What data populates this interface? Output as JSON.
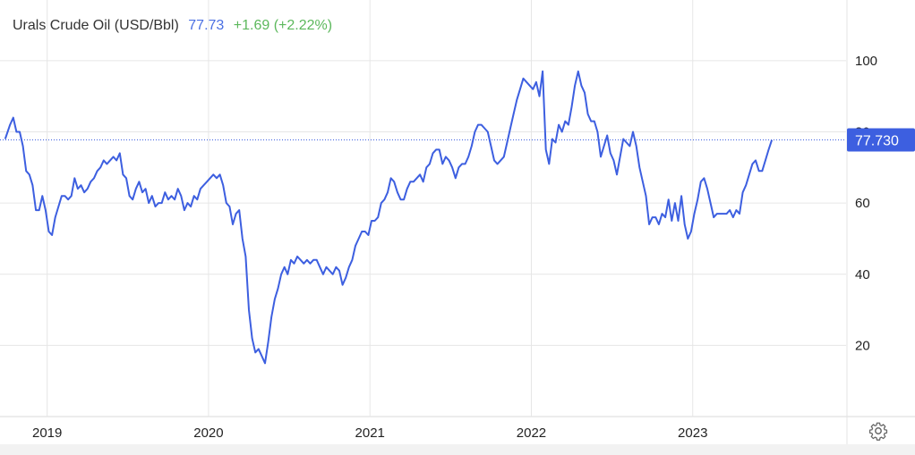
{
  "header": {
    "title": "Urals Crude Oil (USD/Bbl)",
    "price": "77.73",
    "change": "+1.69 (+2.22%)"
  },
  "colors": {
    "line": "#3d5fe0",
    "price_text": "#4a6fe3",
    "change_text": "#5cb85c",
    "grid": "#e6e6e6",
    "label_bg": "#3d5fe0"
  },
  "icons": {
    "settings": "gear-icon"
  },
  "chart_data": {
    "type": "line",
    "title": "Urals Crude Oil (USD/Bbl)",
    "xlabel": "",
    "ylabel": "",
    "ylim": [
      0,
      105
    ],
    "xlim": [
      2018.73,
      2023.95
    ],
    "x_ticks": [
      "2019",
      "2020",
      "2021",
      "2022",
      "2023"
    ],
    "y_ticks": [
      "100",
      "80",
      "60",
      "40",
      "20"
    ],
    "grid": true,
    "last_value_label": "77.730",
    "series": [
      {
        "name": "",
        "points": [
          [
            2018.74,
            78
          ],
          [
            2018.77,
            82
          ],
          [
            2018.79,
            84
          ],
          [
            2018.81,
            80
          ],
          [
            2018.83,
            80
          ],
          [
            2018.85,
            76
          ],
          [
            2018.87,
            69
          ],
          [
            2018.89,
            68
          ],
          [
            2018.91,
            65
          ],
          [
            2018.93,
            58
          ],
          [
            2018.95,
            58
          ],
          [
            2018.97,
            62
          ],
          [
            2018.99,
            58
          ],
          [
            2019.01,
            52
          ],
          [
            2019.03,
            51
          ],
          [
            2019.05,
            56
          ],
          [
            2019.07,
            59
          ],
          [
            2019.09,
            62
          ],
          [
            2019.11,
            62
          ],
          [
            2019.13,
            61
          ],
          [
            2019.15,
            62
          ],
          [
            2019.17,
            67
          ],
          [
            2019.19,
            64
          ],
          [
            2019.21,
            65
          ],
          [
            2019.23,
            63
          ],
          [
            2019.25,
            64
          ],
          [
            2019.27,
            66
          ],
          [
            2019.29,
            67
          ],
          [
            2019.31,
            69
          ],
          [
            2019.33,
            70
          ],
          [
            2019.35,
            72
          ],
          [
            2019.37,
            71
          ],
          [
            2019.39,
            72
          ],
          [
            2019.41,
            73
          ],
          [
            2019.43,
            72
          ],
          [
            2019.45,
            74
          ],
          [
            2019.47,
            68
          ],
          [
            2019.49,
            67
          ],
          [
            2019.51,
            62
          ],
          [
            2019.53,
            61
          ],
          [
            2019.55,
            64
          ],
          [
            2019.57,
            66
          ],
          [
            2019.59,
            63
          ],
          [
            2019.61,
            64
          ],
          [
            2019.63,
            60
          ],
          [
            2019.65,
            62
          ],
          [
            2019.67,
            59
          ],
          [
            2019.69,
            60
          ],
          [
            2019.71,
            60
          ],
          [
            2019.73,
            63
          ],
          [
            2019.75,
            61
          ],
          [
            2019.77,
            62
          ],
          [
            2019.79,
            61
          ],
          [
            2019.81,
            64
          ],
          [
            2019.83,
            62
          ],
          [
            2019.85,
            58
          ],
          [
            2019.87,
            60
          ],
          [
            2019.89,
            59
          ],
          [
            2019.91,
            62
          ],
          [
            2019.93,
            61
          ],
          [
            2019.95,
            64
          ],
          [
            2019.97,
            65
          ],
          [
            2019.99,
            66
          ],
          [
            2020.01,
            67
          ],
          [
            2020.03,
            68
          ],
          [
            2020.05,
            67
          ],
          [
            2020.07,
            68
          ],
          [
            2020.09,
            65
          ],
          [
            2020.11,
            60
          ],
          [
            2020.13,
            59
          ],
          [
            2020.15,
            54
          ],
          [
            2020.17,
            57
          ],
          [
            2020.19,
            58
          ],
          [
            2020.21,
            50
          ],
          [
            2020.23,
            45
          ],
          [
            2020.25,
            30
          ],
          [
            2020.27,
            22
          ],
          [
            2020.29,
            18
          ],
          [
            2020.31,
            19
          ],
          [
            2020.33,
            17
          ],
          [
            2020.35,
            15
          ],
          [
            2020.37,
            21
          ],
          [
            2020.39,
            28
          ],
          [
            2020.41,
            33
          ],
          [
            2020.43,
            36
          ],
          [
            2020.45,
            40
          ],
          [
            2020.47,
            42
          ],
          [
            2020.49,
            40
          ],
          [
            2020.51,
            44
          ],
          [
            2020.53,
            43
          ],
          [
            2020.55,
            45
          ],
          [
            2020.57,
            44
          ],
          [
            2020.59,
            43
          ],
          [
            2020.61,
            44
          ],
          [
            2020.63,
            43
          ],
          [
            2020.65,
            44
          ],
          [
            2020.67,
            44
          ],
          [
            2020.69,
            42
          ],
          [
            2020.71,
            40
          ],
          [
            2020.73,
            42
          ],
          [
            2020.75,
            41
          ],
          [
            2020.77,
            40
          ],
          [
            2020.79,
            42
          ],
          [
            2020.81,
            41
          ],
          [
            2020.83,
            37
          ],
          [
            2020.85,
            39
          ],
          [
            2020.87,
            42
          ],
          [
            2020.89,
            44
          ],
          [
            2020.91,
            48
          ],
          [
            2020.93,
            50
          ],
          [
            2020.95,
            52
          ],
          [
            2020.97,
            52
          ],
          [
            2020.99,
            51
          ],
          [
            2021.01,
            55
          ],
          [
            2021.03,
            55
          ],
          [
            2021.05,
            56
          ],
          [
            2021.07,
            60
          ],
          [
            2021.09,
            61
          ],
          [
            2021.11,
            63
          ],
          [
            2021.13,
            67
          ],
          [
            2021.15,
            66
          ],
          [
            2021.17,
            63
          ],
          [
            2021.19,
            61
          ],
          [
            2021.21,
            61
          ],
          [
            2021.23,
            64
          ],
          [
            2021.25,
            66
          ],
          [
            2021.27,
            66
          ],
          [
            2021.29,
            67
          ],
          [
            2021.31,
            68
          ],
          [
            2021.33,
            66
          ],
          [
            2021.35,
            70
          ],
          [
            2021.37,
            71
          ],
          [
            2021.39,
            74
          ],
          [
            2021.41,
            75
          ],
          [
            2021.43,
            75
          ],
          [
            2021.45,
            71
          ],
          [
            2021.47,
            73
          ],
          [
            2021.49,
            72
          ],
          [
            2021.51,
            70
          ],
          [
            2021.53,
            67
          ],
          [
            2021.55,
            70
          ],
          [
            2021.57,
            71
          ],
          [
            2021.59,
            71
          ],
          [
            2021.61,
            73
          ],
          [
            2021.63,
            76
          ],
          [
            2021.65,
            80
          ],
          [
            2021.67,
            82
          ],
          [
            2021.69,
            82
          ],
          [
            2021.71,
            81
          ],
          [
            2021.73,
            80
          ],
          [
            2021.75,
            76
          ],
          [
            2021.77,
            72
          ],
          [
            2021.79,
            71
          ],
          [
            2021.81,
            72
          ],
          [
            2021.83,
            73
          ],
          [
            2021.85,
            77
          ],
          [
            2021.87,
            81
          ],
          [
            2021.89,
            85
          ],
          [
            2021.91,
            89
          ],
          [
            2021.93,
            92
          ],
          [
            2021.95,
            95
          ],
          [
            2021.97,
            94
          ],
          [
            2021.99,
            93
          ],
          [
            2022.01,
            92
          ],
          [
            2022.03,
            94
          ],
          [
            2022.05,
            90
          ],
          [
            2022.07,
            97
          ],
          [
            2022.09,
            75
          ],
          [
            2022.11,
            71
          ],
          [
            2022.13,
            78
          ],
          [
            2022.15,
            77
          ],
          [
            2022.17,
            82
          ],
          [
            2022.19,
            80
          ],
          [
            2022.21,
            83
          ],
          [
            2022.23,
            82
          ],
          [
            2022.25,
            87
          ],
          [
            2022.27,
            93
          ],
          [
            2022.29,
            97
          ],
          [
            2022.31,
            93
          ],
          [
            2022.33,
            91
          ],
          [
            2022.35,
            85
          ],
          [
            2022.37,
            83
          ],
          [
            2022.39,
            83
          ],
          [
            2022.41,
            80
          ],
          [
            2022.43,
            73
          ],
          [
            2022.45,
            76
          ],
          [
            2022.47,
            79
          ],
          [
            2022.49,
            74
          ],
          [
            2022.51,
            72
          ],
          [
            2022.53,
            68
          ],
          [
            2022.55,
            73
          ],
          [
            2022.57,
            78
          ],
          [
            2022.59,
            77
          ],
          [
            2022.61,
            76
          ],
          [
            2022.63,
            80
          ],
          [
            2022.65,
            76
          ],
          [
            2022.67,
            70
          ],
          [
            2022.69,
            66
          ],
          [
            2022.71,
            62
          ],
          [
            2022.73,
            54
          ],
          [
            2022.75,
            56
          ],
          [
            2022.77,
            56
          ],
          [
            2022.79,
            54
          ],
          [
            2022.81,
            57
          ],
          [
            2022.83,
            56
          ],
          [
            2022.85,
            61
          ],
          [
            2022.87,
            55
          ],
          [
            2022.89,
            60
          ],
          [
            2022.91,
            55
          ],
          [
            2022.93,
            62
          ],
          [
            2022.95,
            54
          ],
          [
            2022.97,
            50
          ],
          [
            2022.99,
            52
          ],
          [
            2023.01,
            57
          ],
          [
            2023.03,
            61
          ],
          [
            2023.05,
            66
          ],
          [
            2023.07,
            67
          ],
          [
            2023.09,
            64
          ],
          [
            2023.11,
            60
          ],
          [
            2023.13,
            56
          ],
          [
            2023.15,
            57
          ],
          [
            2023.17,
            57
          ],
          [
            2023.19,
            57
          ],
          [
            2023.21,
            57
          ],
          [
            2023.23,
            58
          ],
          [
            2023.25,
            56
          ],
          [
            2023.27,
            58
          ],
          [
            2023.29,
            57
          ],
          [
            2023.31,
            63
          ],
          [
            2023.33,
            65
          ],
          [
            2023.35,
            68
          ],
          [
            2023.37,
            71
          ],
          [
            2023.39,
            72
          ],
          [
            2023.41,
            69
          ],
          [
            2023.43,
            69
          ],
          [
            2023.45,
            72
          ],
          [
            2023.47,
            75
          ],
          [
            2023.49,
            77.73
          ]
        ]
      }
    ]
  }
}
